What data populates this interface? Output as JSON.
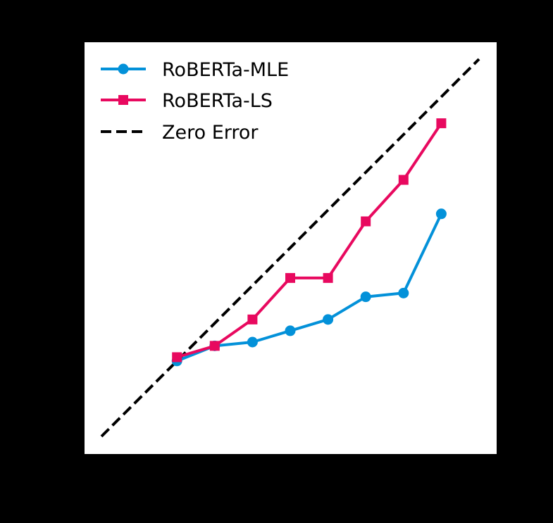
{
  "chart_data": {
    "type": "line",
    "title": "",
    "xlabel": "",
    "ylabel": "",
    "xlim": [
      0.1,
      1.0
    ],
    "ylim": [
      0.1,
      1.0
    ],
    "grid": false,
    "legend_position": "upper-left",
    "series": [
      {
        "name": "RoBERTa-MLE",
        "color": "#0391d9",
        "marker": "circle",
        "linestyle": "solid",
        "x": [
          0.3,
          0.4,
          0.5,
          0.6,
          0.7,
          0.8,
          0.9,
          1.0
        ],
        "y": [
          0.3,
          0.34,
          0.35,
          0.38,
          0.41,
          0.47,
          0.48,
          0.69
        ]
      },
      {
        "name": "RoBERTa-LS",
        "color": "#e8095f",
        "marker": "square",
        "linestyle": "solid",
        "x": [
          0.3,
          0.4,
          0.5,
          0.6,
          0.7,
          0.8,
          0.9,
          1.0
        ],
        "y": [
          0.31,
          0.34,
          0.41,
          0.52,
          0.52,
          0.67,
          0.78,
          0.93
        ]
      },
      {
        "name": "Zero Error",
        "color": "#000000",
        "marker": "none",
        "linestyle": "dashed",
        "x": [
          0.1,
          1.1
        ],
        "y": [
          0.1,
          1.1
        ]
      }
    ]
  }
}
